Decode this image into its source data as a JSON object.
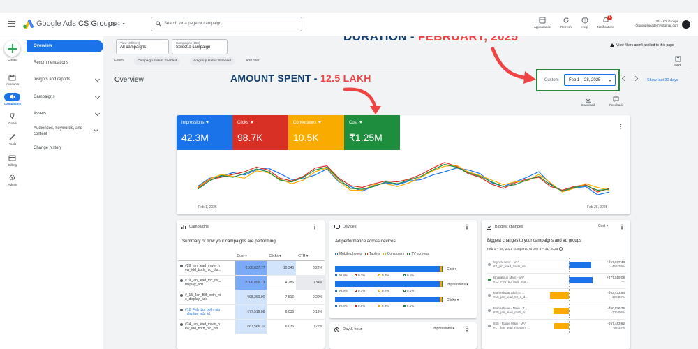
{
  "header": {
    "brand": "Google Ads",
    "account_name": "CS Groups",
    "account_id": "351-",
    "search_placeholder": "Search for a page or campaign",
    "buttons": [
      "Appearance",
      "Refresh",
      "Help",
      "Notifications"
    ],
    "notification_count": "1",
    "user_line1": "351-        CS Groups",
    "user_line2": "csgroupsacademy@gmail.com"
  },
  "rail": {
    "items": [
      "Create",
      "Accounts",
      "Campaigns",
      "Goals",
      "Tools",
      "Billing",
      "Admin"
    ]
  },
  "sidenav": {
    "items": [
      "Overview",
      "Recommendations",
      "Insights and reports",
      "Campaigns",
      "Assets",
      "Audiences, keywords, and content",
      "Change history"
    ]
  },
  "filters": {
    "view_small": "View (2 filters)",
    "view_value": "All campaigns",
    "campaigns_small": "Campaigns (155)",
    "campaigns_value": "Select a campaign",
    "filters_label": "Filters",
    "chips": [
      "Campaign status: Enabled",
      "Ad group status: Enabled"
    ],
    "add_filter": "Add filter",
    "notice": "View filters aren't applied to this page",
    "save": "Save"
  },
  "annotations": {
    "duration_label": "DURATION - ",
    "duration_value": "FEBRUARY, 2025",
    "amount_label": "AMOUNT SPENT - ",
    "amount_value": "12.5 LAKH"
  },
  "overview": {
    "title": "Overview",
    "custom_label": "Custom",
    "date_range": "Feb 1 – 28, 2025",
    "show_last": "Show last 30 days",
    "download": "Download",
    "feedback": "Feedback"
  },
  "metrics": [
    {
      "label": "Impressions",
      "value": "42.3M",
      "color": "#1a73e8"
    },
    {
      "label": "Clicks",
      "value": "98.7K",
      "color": "#d93025"
    },
    {
      "label": "Conversions",
      "value": "10.5K",
      "color": "#f9ab00"
    },
    {
      "label": "Cost",
      "value": "₹1.25M",
      "color": "#1e8e3e"
    }
  ],
  "chart_data": {
    "type": "line",
    "x_start": "Feb 1, 2025",
    "x_end": "Feb 28, 2025",
    "series": [
      {
        "values": [
          0.3,
          0.48,
          0.52,
          0.6,
          0.55,
          0.66,
          0.7,
          0.58,
          0.45,
          0.47,
          0.55,
          0.68,
          0.4,
          0.3,
          0.2,
          0.32,
          0.38,
          0.34,
          0.42,
          0.45,
          0.55,
          0.62,
          0.7,
          0.66,
          0.58,
          0.38,
          0.3,
          0.4,
          0.5,
          0.62,
          0.36,
          0.2,
          0.26,
          0.3,
          0.12,
          0.18
        ]
      },
      {
        "values": [
          0.26,
          0.45,
          0.5,
          0.56,
          0.62,
          0.72,
          0.66,
          0.48,
          0.42,
          0.52,
          0.7,
          0.75,
          0.48,
          0.32,
          0.28,
          0.36,
          0.42,
          0.4,
          0.46,
          0.56,
          0.7,
          0.82,
          0.74,
          0.58,
          0.5,
          0.35,
          0.26,
          0.38,
          0.46,
          0.5,
          0.3,
          0.22,
          0.3,
          0.34,
          0.18,
          0.26
        ]
      },
      {
        "values": [
          0.28,
          0.46,
          0.56,
          0.52,
          0.48,
          0.64,
          0.6,
          0.46,
          0.36,
          0.44,
          0.62,
          0.7,
          0.42,
          0.22,
          0.22,
          0.34,
          0.36,
          0.3,
          0.38,
          0.5,
          0.64,
          0.74,
          0.76,
          0.62,
          0.54,
          0.44,
          0.34,
          0.4,
          0.42,
          0.56,
          0.38,
          0.18,
          0.26,
          0.36,
          0.28,
          0.22
        ]
      },
      {
        "values": [
          0.24,
          0.42,
          0.54,
          0.5,
          0.58,
          0.68,
          0.62,
          0.44,
          0.4,
          0.5,
          0.66,
          0.72,
          0.46,
          0.26,
          0.24,
          0.3,
          0.4,
          0.36,
          0.44,
          0.52,
          0.66,
          0.78,
          0.72,
          0.6,
          0.52,
          0.4,
          0.3,
          0.34,
          0.44,
          0.52,
          0.34,
          0.2,
          0.28,
          0.32,
          0.22,
          0.24
        ]
      }
    ],
    "colors": [
      "#1a73e8",
      "#d93025",
      "#f9ab00",
      "#1e8e3e"
    ]
  },
  "campaigns_panel": {
    "title": "Campaigns",
    "subtitle": "Summary of how your campaigns are performing",
    "headers": [
      "Cost",
      "Clicks",
      "CTR"
    ],
    "rows": [
      {
        "name": "#28_jan_lead_mwin_n ew_idd_both_nto_dis...",
        "cost": "₹106,837.77",
        "clicks": "10,340",
        "ctr": "0.22%"
      },
      {
        "name": "#19_jan_lead_mc_fhr_ display_ads",
        "cost": "₹106,059.73",
        "clicks": "4,286",
        "ctr": "0.34%"
      },
      {
        "name": "#_15_Jan_BB_both_nt o_display_ads",
        "cost": "₹98,260.90",
        "clicks": "7,516",
        "ctr": "0.20%"
      },
      {
        "name": "#12_Feb_bp_both_nto _display_ads_id",
        "cost": "₹77,519.08",
        "clicks": "6,036",
        "ctr": "0.19%"
      },
      {
        "name": "#24_jan_lead_mwin_n ew_idd_both_nto_dis...",
        "cost": "₹67,566.10",
        "clicks": "6,036",
        "ctr": "0.22%"
      }
    ]
  },
  "devices_panel": {
    "title": "Devices",
    "subtitle": "Ad performance across devices",
    "legend": [
      "Mobile phones",
      "Tablets",
      "Computers",
      "TV screens"
    ],
    "legend_colors": [
      "#1a73e8",
      "#d93025",
      "#f9ab00",
      "#1e8e3e"
    ],
    "rows": [
      {
        "metric": "Cost",
        "values": [
          99.8,
          0.1,
          0.0,
          0.1
        ],
        "labels": [
          "99.8%",
          "0.1%",
          "0.0%",
          "0.1%"
        ]
      },
      {
        "metric": "Impressions",
        "values": [
          99.9,
          0.1,
          0.0,
          0.1
        ],
        "labels": [
          "99.9%",
          "0.1%",
          "0.0%",
          "0.1%"
        ]
      },
      {
        "metric": "Clicks",
        "values": [
          99.8,
          0.1,
          0.0,
          0.1
        ],
        "labels": [
          "99.8%",
          "0.1%",
          "0.0%",
          "0.1%"
        ]
      }
    ]
  },
  "dayhour_panel": {
    "title": "Day & hour",
    "metric": "Impressions"
  },
  "changes_panel": {
    "title": "Biggest changes",
    "metric": "Cost",
    "subtitle": "Biggest changes to your campaigns and ad groups",
    "range": "Feb 1 – 28, 2025 compared to Jan 4 – 31, 2025",
    "rows": [
      {
        "name": "My Vst New - VA* #2_jan_lead_mwin_de...",
        "delta": "+₹57,577.48",
        "pct": "+456.70%",
        "dir": "up",
        "frac": 0.9
      },
      {
        "name": "Bharatpuri Main - VA* #12_Feb_bp_both_nto...",
        "delta": "+₹77,519.08",
        "pct": "—",
        "dir": "up",
        "frac": 0.95
      },
      {
        "name": "Maheshwar abd == ... #15_jan_lead_02_s_d...",
        "delta": "-₹63,433.94",
        "pct": "-100.00%",
        "dir": "down",
        "frac": 0.75
      },
      {
        "name": "Maheshwar - Main - T... #25_jan_lead_mah_bo...",
        "delta": "-₹50,876.75",
        "pct": "-100.00%",
        "dir": "down",
        "frac": 0.6
      },
      {
        "name": "555 - Rajoe Main - VA* #17_jan_lead_murgan_...",
        "delta": "-₹57,483.62",
        "pct": "-96.15%",
        "dir": "down",
        "frac": 0.58
      }
    ]
  }
}
